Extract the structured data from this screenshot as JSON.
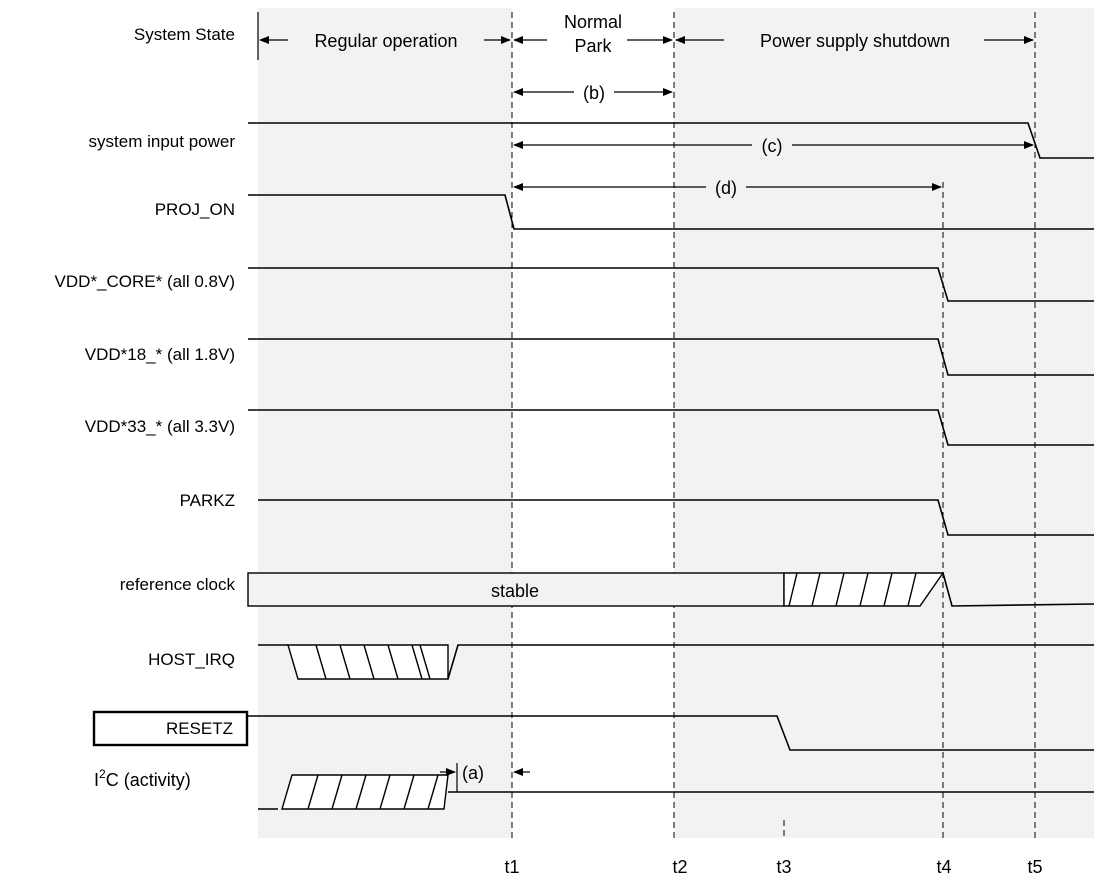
{
  "states": {
    "label": "System State",
    "regular": "Regular operation",
    "park_line1": "Normal",
    "park_line2": "Park",
    "shutdown": "Power supply shutdown"
  },
  "intervals": {
    "a": "(a)",
    "b": "(b)",
    "c": "(c)",
    "d": "(d)"
  },
  "signals": {
    "input_power": "system input power",
    "proj_on": "PROJ_ON",
    "core": "VDD*_CORE* (all 0.8V)",
    "v18": "VDD*18_* (all 1.8V)",
    "v33": "VDD*33_* (all 3.3V)",
    "parkz": "PARKZ",
    "refclk": "reference clock",
    "host_irq": "HOST_IRQ",
    "resetz": "RESETZ",
    "i2c_prefix": "I",
    "i2c_sup": "2",
    "i2c_suffix": "C (activity)"
  },
  "clock_state": "stable",
  "times": {
    "t1": "t1",
    "t2": "t2",
    "t3": "t3",
    "t4": "t4",
    "t5": "t5"
  }
}
